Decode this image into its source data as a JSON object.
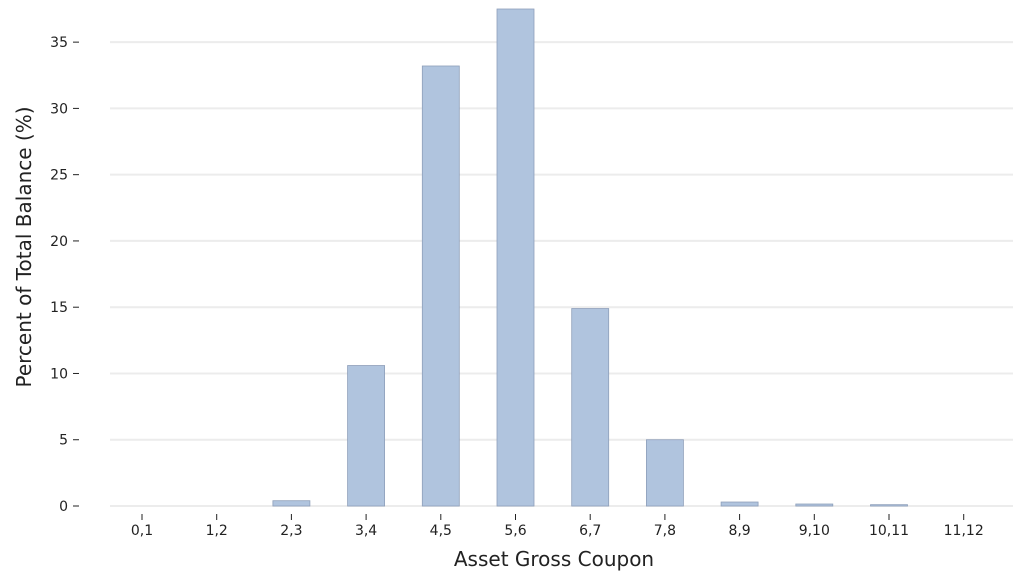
{
  "chart_data": {
    "type": "bar",
    "title": "",
    "xlabel": "Asset Gross Coupon",
    "ylabel": "Percent of Total Balance (%)",
    "categories": [
      "0,1",
      "1,2",
      "2,3",
      "3,4",
      "4,5",
      "5,6",
      "6,7",
      "7,8",
      "8,9",
      "9,10",
      "10,11",
      "11,12"
    ],
    "values": [
      0,
      0,
      0.4,
      10.6,
      33.2,
      37.5,
      14.9,
      5.0,
      0.3,
      0.15,
      0.1,
      0
    ],
    "yticks": [
      "0",
      "5",
      "10",
      "15",
      "20",
      "25",
      "30",
      "35"
    ],
    "ylim": [
      0,
      37.5
    ],
    "grid": "horizontal",
    "colors": {
      "bar_fill": "#b0c4de",
      "bar_edge": "#8e9fba",
      "grid": "#ececec",
      "text": "#222222"
    }
  }
}
